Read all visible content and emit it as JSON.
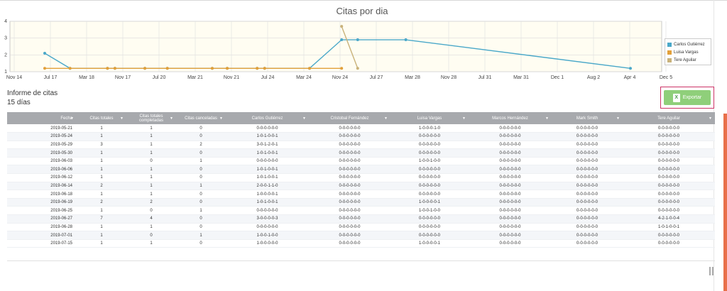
{
  "chart_data": {
    "type": "line",
    "title": "Citas por dia",
    "x_tick_labels": [
      "Nov 14",
      "Jul 17",
      "Mar 18",
      "Nov 17",
      "Jul 20",
      "Mar 21",
      "Nov 21",
      "Jul 24",
      "Mar 24",
      "Nov 24",
      "Jul 27",
      "Mar 28",
      "Nov 28",
      "Jul 31",
      "Mar 31",
      "Dec 1",
      "Aug 2",
      "Apr 4",
      "Dec 5"
    ],
    "y_tick_labels": [
      "4",
      "3",
      "2",
      "1"
    ],
    "ylim": [
      1,
      4
    ],
    "grid": true,
    "legend_position": "right",
    "series": [
      {
        "name": "Carlos Gutiérrez",
        "color": "#4aa8c9",
        "x": [
          "2019-05-21",
          "2019-05-24",
          "2019-05-29",
          "2019-05-30",
          "2019-06-03",
          "2019-06-06",
          "2019-06-12",
          "2019-06-14",
          "2019-06-18",
          "2019-06-19",
          "2019-06-25",
          "2019-06-27",
          "2019-06-28",
          "2019-07-01",
          "2019-07-15"
        ],
        "y": [
          2.1,
          1.2,
          1.2,
          1.2,
          1.2,
          1.2,
          1.2,
          1.2,
          1.2,
          1.2,
          1.2,
          2.9,
          2.9,
          2.9,
          1.2
        ]
      },
      {
        "name": "Luisa Vargas",
        "color": "#e2a03a",
        "x": [
          "2019-05-21",
          "2019-05-24",
          "2019-05-29",
          "2019-05-30",
          "2019-06-03",
          "2019-06-06",
          "2019-06-12",
          "2019-06-14",
          "2019-06-18",
          "2019-06-19",
          "2019-06-25",
          "2019-06-27"
        ],
        "y": [
          1.2,
          1.2,
          1.2,
          1.2,
          1.2,
          1.2,
          1.2,
          1.2,
          1.2,
          1.2,
          1.2,
          1.2
        ]
      },
      {
        "name": "Tere Aguilar",
        "color": "#c9b27a",
        "x": [
          "2019-06-27",
          "2019-06-28"
        ],
        "y": [
          3.7,
          1.2
        ]
      }
    ]
  },
  "report": {
    "title": "Informe de citas",
    "subtitle": "15 días",
    "export_label": "Exportar",
    "export_icon": "excel-icon"
  },
  "table": {
    "columns": [
      "Fecha",
      "Citas totales",
      "Citas totales completadas",
      "Citas canceladas",
      "Carlos Gutiérrez",
      "Cristobal Fernández",
      "Luisa Vargas",
      "Marcos Hernández",
      "Mark Smith",
      "Tere Aguilar"
    ],
    "rows": [
      [
        "2019-05-21",
        "1",
        "1",
        "0",
        "0-0-0-0-0-0",
        "0-0-0-0-0-0",
        "1-0-0-0-1-0",
        "0-0-0-0-0-0",
        "0-0-0-0-0-0",
        "0-0-0-0-0-0"
      ],
      [
        "2019-05-24",
        "1",
        "1",
        "0",
        "1-0-1-0-0-1",
        "0-0-0-0-0-0",
        "0-0-0-0-0-0",
        "0-0-0-0-0-0",
        "0-0-0-0-0-0",
        "0-0-0-0-0-0"
      ],
      [
        "2019-05-29",
        "3",
        "1",
        "2",
        "3-0-1-2-0-1",
        "0-0-0-0-0-0",
        "0-0-0-0-0-0",
        "0-0-0-0-0-0",
        "0-0-0-0-0-0",
        "0-0-0-0-0-0"
      ],
      [
        "2019-05-30",
        "1",
        "1",
        "0",
        "1-0-1-0-0-1",
        "0-0-0-0-0-0",
        "0-0-0-0-0-0",
        "0-0-0-0-0-0",
        "0-0-0-0-0-0",
        "0-0-0-0-0-0"
      ],
      [
        "2019-06-03",
        "1",
        "0",
        "1",
        "0-0-0-0-0-0",
        "0-0-0-0-0-0",
        "1-0-0-1-0-0",
        "0-0-0-0-0-0",
        "0-0-0-0-0-0",
        "0-0-0-0-0-0"
      ],
      [
        "2019-06-06",
        "1",
        "1",
        "0",
        "1-0-1-0-0-1",
        "0-0-0-0-0-0",
        "0-0-0-0-0-0",
        "0-0-0-0-0-0",
        "0-0-0-0-0-0",
        "0-0-0-0-0-0"
      ],
      [
        "2019-06-12",
        "1",
        "1",
        "0",
        "1-0-1-0-0-1",
        "0-0-0-0-0-0",
        "0-0-0-0-0-0",
        "0-0-0-0-0-0",
        "0-0-0-0-0-0",
        "0-0-0-0-0-0"
      ],
      [
        "2019-06-14",
        "2",
        "1",
        "1",
        "2-0-0-1-1-0",
        "0-0-0-0-0-0",
        "0-0-0-0-0-0",
        "0-0-0-0-0-0",
        "0-0-0-0-0-0",
        "0-0-0-0-0-0"
      ],
      [
        "2019-06-18",
        "1",
        "1",
        "0",
        "1-0-0-0-0-1",
        "0-0-0-0-0-0",
        "0-0-0-0-0-0",
        "0-0-0-0-0-0",
        "0-0-0-0-0-0",
        "0-0-0-0-0-0"
      ],
      [
        "2019-06-19",
        "2",
        "2",
        "0",
        "1-0-1-0-0-1",
        "0-0-0-0-0-0",
        "1-0-0-0-0-1",
        "0-0-0-0-0-0",
        "0-0-0-0-0-0",
        "0-0-0-0-0-0"
      ],
      [
        "2019-06-25",
        "1",
        "0",
        "1",
        "0-0-0-0-0-0",
        "0-0-0-0-0-0",
        "1-0-0-1-0-0",
        "0-0-0-0-0-0",
        "0-0-0-0-0-0",
        "0-0-0-0-0-0"
      ],
      [
        "2019-06-27",
        "7",
        "4",
        "0",
        "3-0-0-0-0-3",
        "0-0-0-0-0-0",
        "0-0-0-0-0-0",
        "0-0-0-0-0-0",
        "0-0-0-0-0-0",
        "4-2-1-0-0-4"
      ],
      [
        "2019-06-28",
        "1",
        "1",
        "0",
        "0-0-0-0-0-0",
        "0-0-0-0-0-0",
        "0-0-0-0-0-0",
        "0-0-0-0-0-0",
        "0-0-0-0-0-0",
        "1-0-1-0-0-1"
      ],
      [
        "2019-07-01",
        "1",
        "0",
        "1",
        "1-0-0-1-0-0",
        "0-0-0-0-0-0",
        "0-0-0-0-0-0",
        "0-0-0-0-0-0",
        "0-0-0-0-0-0",
        "0-0-0-0-0-0"
      ],
      [
        "2019-07-15",
        "1",
        "1",
        "0",
        "1-0-0-0-0-0",
        "0-0-0-0-0-0",
        "1-0-0-0-0-1",
        "0-0-0-0-0-0",
        "0-0-0-0-0-0",
        "0-0-0-0-0-0"
      ]
    ]
  }
}
